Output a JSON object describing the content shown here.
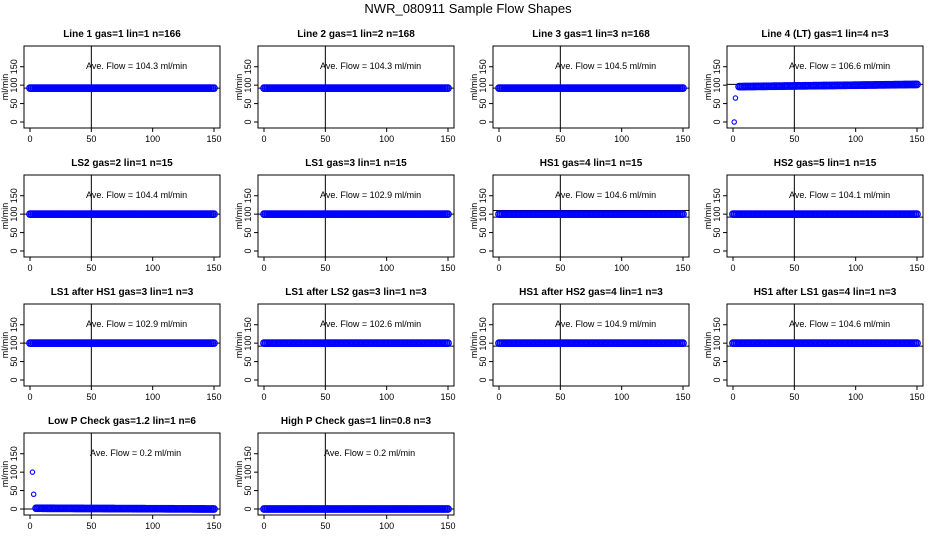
{
  "title": "NWR_080911  Sample Flow Shapes",
  "colors": {
    "points": "#0000ff",
    "axes": "#000000",
    "background": "#ffffff"
  },
  "chart_data": [
    {
      "type": "scatter",
      "title": "Line 1 gas=1 lin=1 n=166",
      "ylabel": "ml/min",
      "xlim": [
        0,
        150
      ],
      "ylim": [
        0,
        190
      ],
      "xticks": [
        "0",
        "50",
        "100",
        "150"
      ],
      "yticks": [
        "0",
        "50",
        "100",
        "150"
      ],
      "vline": 50,
      "hlines": [
        92
      ],
      "annotation": "Ave. Flow =  104.3  ml/min",
      "points": [
        [
          0,
          92
        ],
        [
          150,
          92
        ]
      ]
    },
    {
      "type": "scatter",
      "title": "Line 2 gas=1 lin=2 n=168",
      "ylabel": "ml/min",
      "xlim": [
        0,
        150
      ],
      "ylim": [
        0,
        190
      ],
      "xticks": [
        "0",
        "50",
        "100",
        "150"
      ],
      "yticks": [
        "0",
        "50",
        "100",
        "150"
      ],
      "vline": 50,
      "hlines": [
        92
      ],
      "annotation": "Ave. Flow =  104.3  ml/min",
      "points": [
        [
          0,
          92
        ],
        [
          150,
          92
        ]
      ]
    },
    {
      "type": "scatter",
      "title": "Line 3 gas=1 lin=3 n=168",
      "ylabel": "ml/min",
      "xlim": [
        0,
        150
      ],
      "ylim": [
        0,
        190
      ],
      "xticks": [
        "0",
        "50",
        "100",
        "150"
      ],
      "yticks": [
        "0",
        "50",
        "100",
        "150"
      ],
      "vline": 50,
      "hlines": [
        92
      ],
      "annotation": "Ave. Flow =  104.5  ml/min",
      "points": [
        [
          0,
          92
        ],
        [
          150,
          92
        ]
      ]
    },
    {
      "type": "scatter",
      "title": "Line 4 (LT) gas=1 lin=4 n=3",
      "ylabel": "ml/min",
      "xlim": [
        0,
        150
      ],
      "ylim": [
        0,
        190
      ],
      "xticks": [
        "0",
        "50",
        "100",
        "150"
      ],
      "yticks": [
        "0",
        "50",
        "100",
        "150"
      ],
      "vline": 50,
      "hlines": [
        102
      ],
      "annotation": "Ave. Flow =  106.6  ml/min",
      "points": [
        [
          1,
          0
        ],
        [
          2,
          65
        ],
        [
          5,
          96
        ],
        [
          150,
          102
        ]
      ]
    },
    {
      "type": "scatter",
      "title": "LS2 gas=2 lin=1 n=15",
      "ylabel": "ml/min",
      "xlim": [
        0,
        150
      ],
      "ylim": [
        0,
        190
      ],
      "xticks": [
        "0",
        "50",
        "100",
        "150"
      ],
      "yticks": [
        "0",
        "50",
        "100",
        "150"
      ],
      "vline": 50,
      "hlines": [
        100
      ],
      "annotation": "Ave. Flow =  104.4  ml/min",
      "points": [
        [
          0,
          100
        ],
        [
          150,
          100
        ]
      ]
    },
    {
      "type": "scatter",
      "title": "LS1 gas=3 lin=1 n=15",
      "ylabel": "ml/min",
      "xlim": [
        0,
        150
      ],
      "ylim": [
        0,
        190
      ],
      "xticks": [
        "0",
        "50",
        "100",
        "150"
      ],
      "yticks": [
        "0",
        "50",
        "100",
        "150"
      ],
      "vline": 50,
      "hlines": [
        100
      ],
      "annotation": "Ave. Flow =  102.9  ml/min",
      "points": [
        [
          0,
          100
        ],
        [
          150,
          100
        ]
      ]
    },
    {
      "type": "scatter",
      "title": "HS1 gas=4 lin=1 n=15",
      "ylabel": "ml/min",
      "xlim": [
        0,
        150
      ],
      "ylim": [
        0,
        190
      ],
      "xticks": [
        "0",
        "50",
        "100",
        "150"
      ],
      "yticks": [
        "0",
        "50",
        "100",
        "150"
      ],
      "vline": 50,
      "hlines": [
        110,
        92
      ],
      "annotation": "Ave. Flow =  104.6  ml/min",
      "points": [
        [
          0,
          100
        ],
        [
          150,
          100
        ]
      ]
    },
    {
      "type": "scatter",
      "title": "HS2 gas=5 lin=1 n=15",
      "ylabel": "ml/min",
      "xlim": [
        0,
        150
      ],
      "ylim": [
        0,
        190
      ],
      "xticks": [
        "0",
        "50",
        "100",
        "150"
      ],
      "yticks": [
        "0",
        "50",
        "100",
        "150"
      ],
      "vline": 50,
      "hlines": [
        92
      ],
      "annotation": "Ave. Flow =  104.1  ml/min",
      "points": [
        [
          0,
          100
        ],
        [
          150,
          100
        ]
      ]
    },
    {
      "type": "scatter",
      "title": "LS1 after HS1 gas=3 lin=1 n=3",
      "ylabel": "ml/min",
      "xlim": [
        0,
        150
      ],
      "ylim": [
        0,
        190
      ],
      "xticks": [
        "0",
        "50",
        "100",
        "150"
      ],
      "yticks": [
        "0",
        "50",
        "100",
        "150"
      ],
      "vline": 50,
      "hlines": [
        100
      ],
      "annotation": "Ave. Flow =  102.9  ml/min",
      "points": [
        [
          0,
          100
        ],
        [
          150,
          100
        ]
      ]
    },
    {
      "type": "scatter",
      "title": "LS1 after LS2 gas=3 lin=1 n=3",
      "ylabel": "ml/min",
      "xlim": [
        0,
        150
      ],
      "ylim": [
        0,
        190
      ],
      "xticks": [
        "0",
        "50",
        "100",
        "150"
      ],
      "yticks": [
        "0",
        "50",
        "100",
        "150"
      ],
      "vline": 50,
      "hlines": [
        92
      ],
      "annotation": "Ave. Flow =  102.6  ml/min",
      "points": [
        [
          0,
          100
        ],
        [
          150,
          100
        ]
      ]
    },
    {
      "type": "scatter",
      "title": "HS1 after HS2 gas=4 lin=1 n=3",
      "ylabel": "ml/min",
      "xlim": [
        0,
        150
      ],
      "ylim": [
        0,
        190
      ],
      "xticks": [
        "0",
        "50",
        "100",
        "150"
      ],
      "yticks": [
        "0",
        "50",
        "100",
        "150"
      ],
      "vline": 50,
      "hlines": [
        92
      ],
      "annotation": "Ave. Flow =  104.9  ml/min",
      "points": [
        [
          0,
          100
        ],
        [
          150,
          100
        ]
      ]
    },
    {
      "type": "scatter",
      "title": "HS1 after LS1 gas=4 lin=1 n=3",
      "ylabel": "ml/min",
      "xlim": [
        0,
        150
      ],
      "ylim": [
        0,
        190
      ],
      "xticks": [
        "0",
        "50",
        "100",
        "150"
      ],
      "yticks": [
        "0",
        "50",
        "100",
        "150"
      ],
      "vline": 50,
      "hlines": [
        92
      ],
      "annotation": "Ave. Flow =  104.6  ml/min",
      "points": [
        [
          0,
          100
        ],
        [
          150,
          100
        ]
      ]
    },
    {
      "type": "scatter",
      "title": "Low P Check gas=1.2 lin=1 n=6",
      "ylabel": "ml/min",
      "xlim": [
        0,
        150
      ],
      "ylim": [
        0,
        190
      ],
      "xticks": [
        "0",
        "50",
        "100",
        "150"
      ],
      "yticks": [
        "0",
        "50",
        "100",
        "150"
      ],
      "vline": 50,
      "hlines": [
        0
      ],
      "annotation": "Ave. Flow =  0.2  ml/min",
      "points": [
        [
          2,
          100
        ],
        [
          3,
          40
        ],
        [
          5,
          2
        ],
        [
          150,
          0
        ]
      ]
    },
    {
      "type": "scatter",
      "title": "High P Check gas=1 lin=0.8 n=3",
      "ylabel": "ml/min",
      "xlim": [
        0,
        150
      ],
      "ylim": [
        0,
        190
      ],
      "xticks": [
        "0",
        "50",
        "100",
        "150"
      ],
      "yticks": [
        "0",
        "50",
        "100",
        "150"
      ],
      "vline": 50,
      "hlines": [
        0
      ],
      "annotation": "Ave. Flow =  0.2  ml/min",
      "points": [
        [
          0,
          0
        ],
        [
          150,
          0
        ]
      ]
    }
  ]
}
